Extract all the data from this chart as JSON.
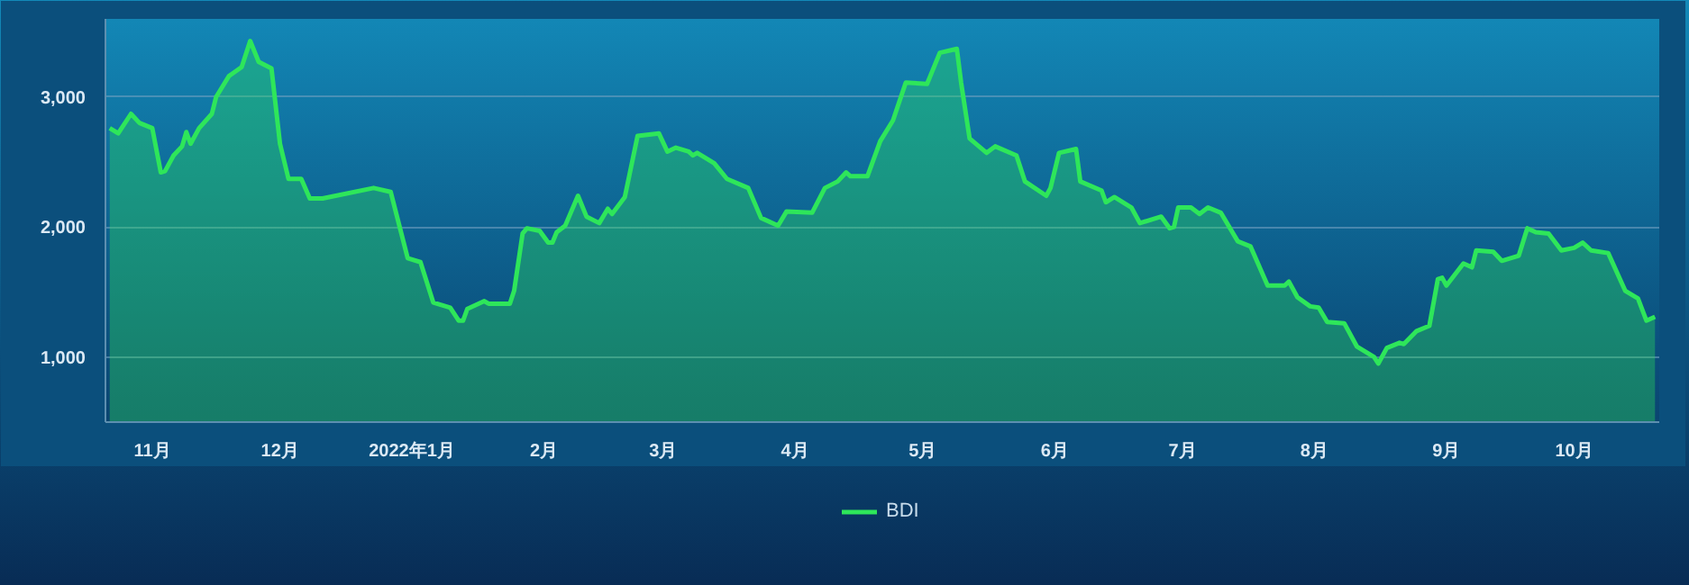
{
  "chart_data": {
    "type": "area",
    "ylim": [
      500,
      3600
    ],
    "yticks": [
      {
        "value": 1000,
        "label": "1,000"
      },
      {
        "value": 2000,
        "label": "2,000"
      },
      {
        "value": 3000,
        "label": "3,000"
      }
    ],
    "xlim": [
      "2021-10-21",
      "2022-10-21"
    ],
    "xticks": [
      {
        "value": "2021-11-01",
        "label": "11月"
      },
      {
        "value": "2021-12-01",
        "label": "12月"
      },
      {
        "value": "2022-01-01",
        "label": "2022年1月"
      },
      {
        "value": "2022-02-01",
        "label": "2月"
      },
      {
        "value": "2022-03-01",
        "label": "3月"
      },
      {
        "value": "2022-04-01",
        "label": "4月"
      },
      {
        "value": "2022-05-01",
        "label": "5月"
      },
      {
        "value": "2022-06-01",
        "label": "6月"
      },
      {
        "value": "2022-07-01",
        "label": "7月"
      },
      {
        "value": "2022-08-01",
        "label": "8月"
      },
      {
        "value": "2022-09-01",
        "label": "9月"
      },
      {
        "value": "2022-10-01",
        "label": "10月"
      }
    ],
    "grid": "y",
    "legend": "bottom",
    "series": [
      {
        "name": "BDI",
        "color": "#2ee65a",
        "x": [
          "2021-10-22",
          "2021-10-24",
          "2021-10-27",
          "2021-10-29",
          "2021-11-01",
          "2021-11-03",
          "2021-11-04",
          "2021-11-06",
          "2021-11-08",
          "2021-11-09",
          "2021-11-10",
          "2021-11-12",
          "2021-11-15",
          "2021-11-16",
          "2021-11-19",
          "2021-11-22",
          "2021-11-24",
          "2021-11-26",
          "2021-11-29",
          "2021-12-01",
          "2021-12-03",
          "2021-12-06",
          "2021-12-08",
          "2021-12-11",
          "2021-12-23",
          "2021-12-27",
          "2021-12-31",
          "2022-01-03",
          "2022-01-06",
          "2022-01-10",
          "2022-01-12",
          "2022-01-13",
          "2022-01-14",
          "2022-01-18",
          "2022-01-19",
          "2022-01-24",
          "2022-01-25",
          "2022-01-27",
          "2022-01-28",
          "2022-01-31",
          "2022-02-02",
          "2022-02-03",
          "2022-02-04",
          "2022-02-06",
          "2022-02-09",
          "2022-02-11",
          "2022-02-14",
          "2022-02-16",
          "2022-02-17",
          "2022-02-20",
          "2022-02-23",
          "2022-02-28",
          "2022-03-02",
          "2022-03-04",
          "2022-03-07",
          "2022-03-08",
          "2022-03-09",
          "2022-03-13",
          "2022-03-16",
          "2022-03-21",
          "2022-03-24",
          "2022-03-28",
          "2022-03-30",
          "2022-04-05",
          "2022-04-08",
          "2022-04-11",
          "2022-04-13",
          "2022-04-14",
          "2022-04-18",
          "2022-04-21",
          "2022-04-24",
          "2022-04-27",
          "2022-05-02",
          "2022-05-05",
          "2022-05-09",
          "2022-05-10",
          "2022-05-12",
          "2022-05-16",
          "2022-05-18",
          "2022-05-23",
          "2022-05-25",
          "2022-05-30",
          "2022-05-31",
          "2022-06-02",
          "2022-06-06",
          "2022-06-07",
          "2022-06-12",
          "2022-06-13",
          "2022-06-15",
          "2022-06-19",
          "2022-06-21",
          "2022-06-26",
          "2022-06-28",
          "2022-06-29",
          "2022-06-30",
          "2022-07-03",
          "2022-07-05",
          "2022-07-07",
          "2022-07-10",
          "2022-07-14",
          "2022-07-17",
          "2022-07-21",
          "2022-07-25",
          "2022-07-26",
          "2022-07-28",
          "2022-07-31",
          "2022-08-02",
          "2022-08-04",
          "2022-08-08",
          "2022-08-11",
          "2022-08-15",
          "2022-08-16",
          "2022-08-18",
          "2022-08-21",
          "2022-08-22",
          "2022-08-25",
          "2022-08-28",
          "2022-08-30",
          "2022-08-31",
          "2022-09-01",
          "2022-09-05",
          "2022-09-07",
          "2022-09-08",
          "2022-09-12",
          "2022-09-14",
          "2022-09-18",
          "2022-09-20",
          "2022-09-22",
          "2022-09-25",
          "2022-09-28",
          "2022-10-01",
          "2022-10-03",
          "2022-10-05",
          "2022-10-09",
          "2022-10-13",
          "2022-10-16",
          "2022-10-18",
          "2022-10-20"
        ],
        "values": [
          2760,
          2720,
          2870,
          2800,
          2760,
          2420,
          2430,
          2550,
          2620,
          2730,
          2640,
          2760,
          2870,
          3000,
          3160,
          3230,
          3430,
          3270,
          3220,
          2640,
          2370,
          2370,
          2220,
          2220,
          2300,
          2270,
          1760,
          1730,
          1420,
          1380,
          1280,
          1280,
          1370,
          1430,
          1410,
          1410,
          1510,
          1950,
          1990,
          1970,
          1880,
          1880,
          1960,
          2010,
          2240,
          2080,
          2030,
          2140,
          2100,
          2230,
          2700,
          2720,
          2580,
          2610,
          2580,
          2550,
          2570,
          2490,
          2370,
          2300,
          2070,
          2010,
          2120,
          2110,
          2300,
          2350,
          2420,
          2390,
          2390,
          2660,
          2820,
          3110,
          3100,
          3340,
          3370,
          3110,
          2680,
          2570,
          2620,
          2550,
          2350,
          2240,
          2300,
          2570,
          2600,
          2350,
          2280,
          2190,
          2230,
          2150,
          2030,
          2080,
          1990,
          2000,
          2150,
          2150,
          2100,
          2150,
          2110,
          1890,
          1850,
          1550,
          1550,
          1580,
          1460,
          1390,
          1380,
          1270,
          1260,
          1080,
          1000,
          950,
          1070,
          1110,
          1100,
          1200,
          1240,
          1600,
          1610,
          1550,
          1720,
          1690,
          1820,
          1810,
          1740,
          1780,
          1990,
          1960,
          1950,
          1820,
          1840,
          1880,
          1820,
          1800,
          1510,
          1450,
          1280,
          1310
        ]
      }
    ]
  }
}
